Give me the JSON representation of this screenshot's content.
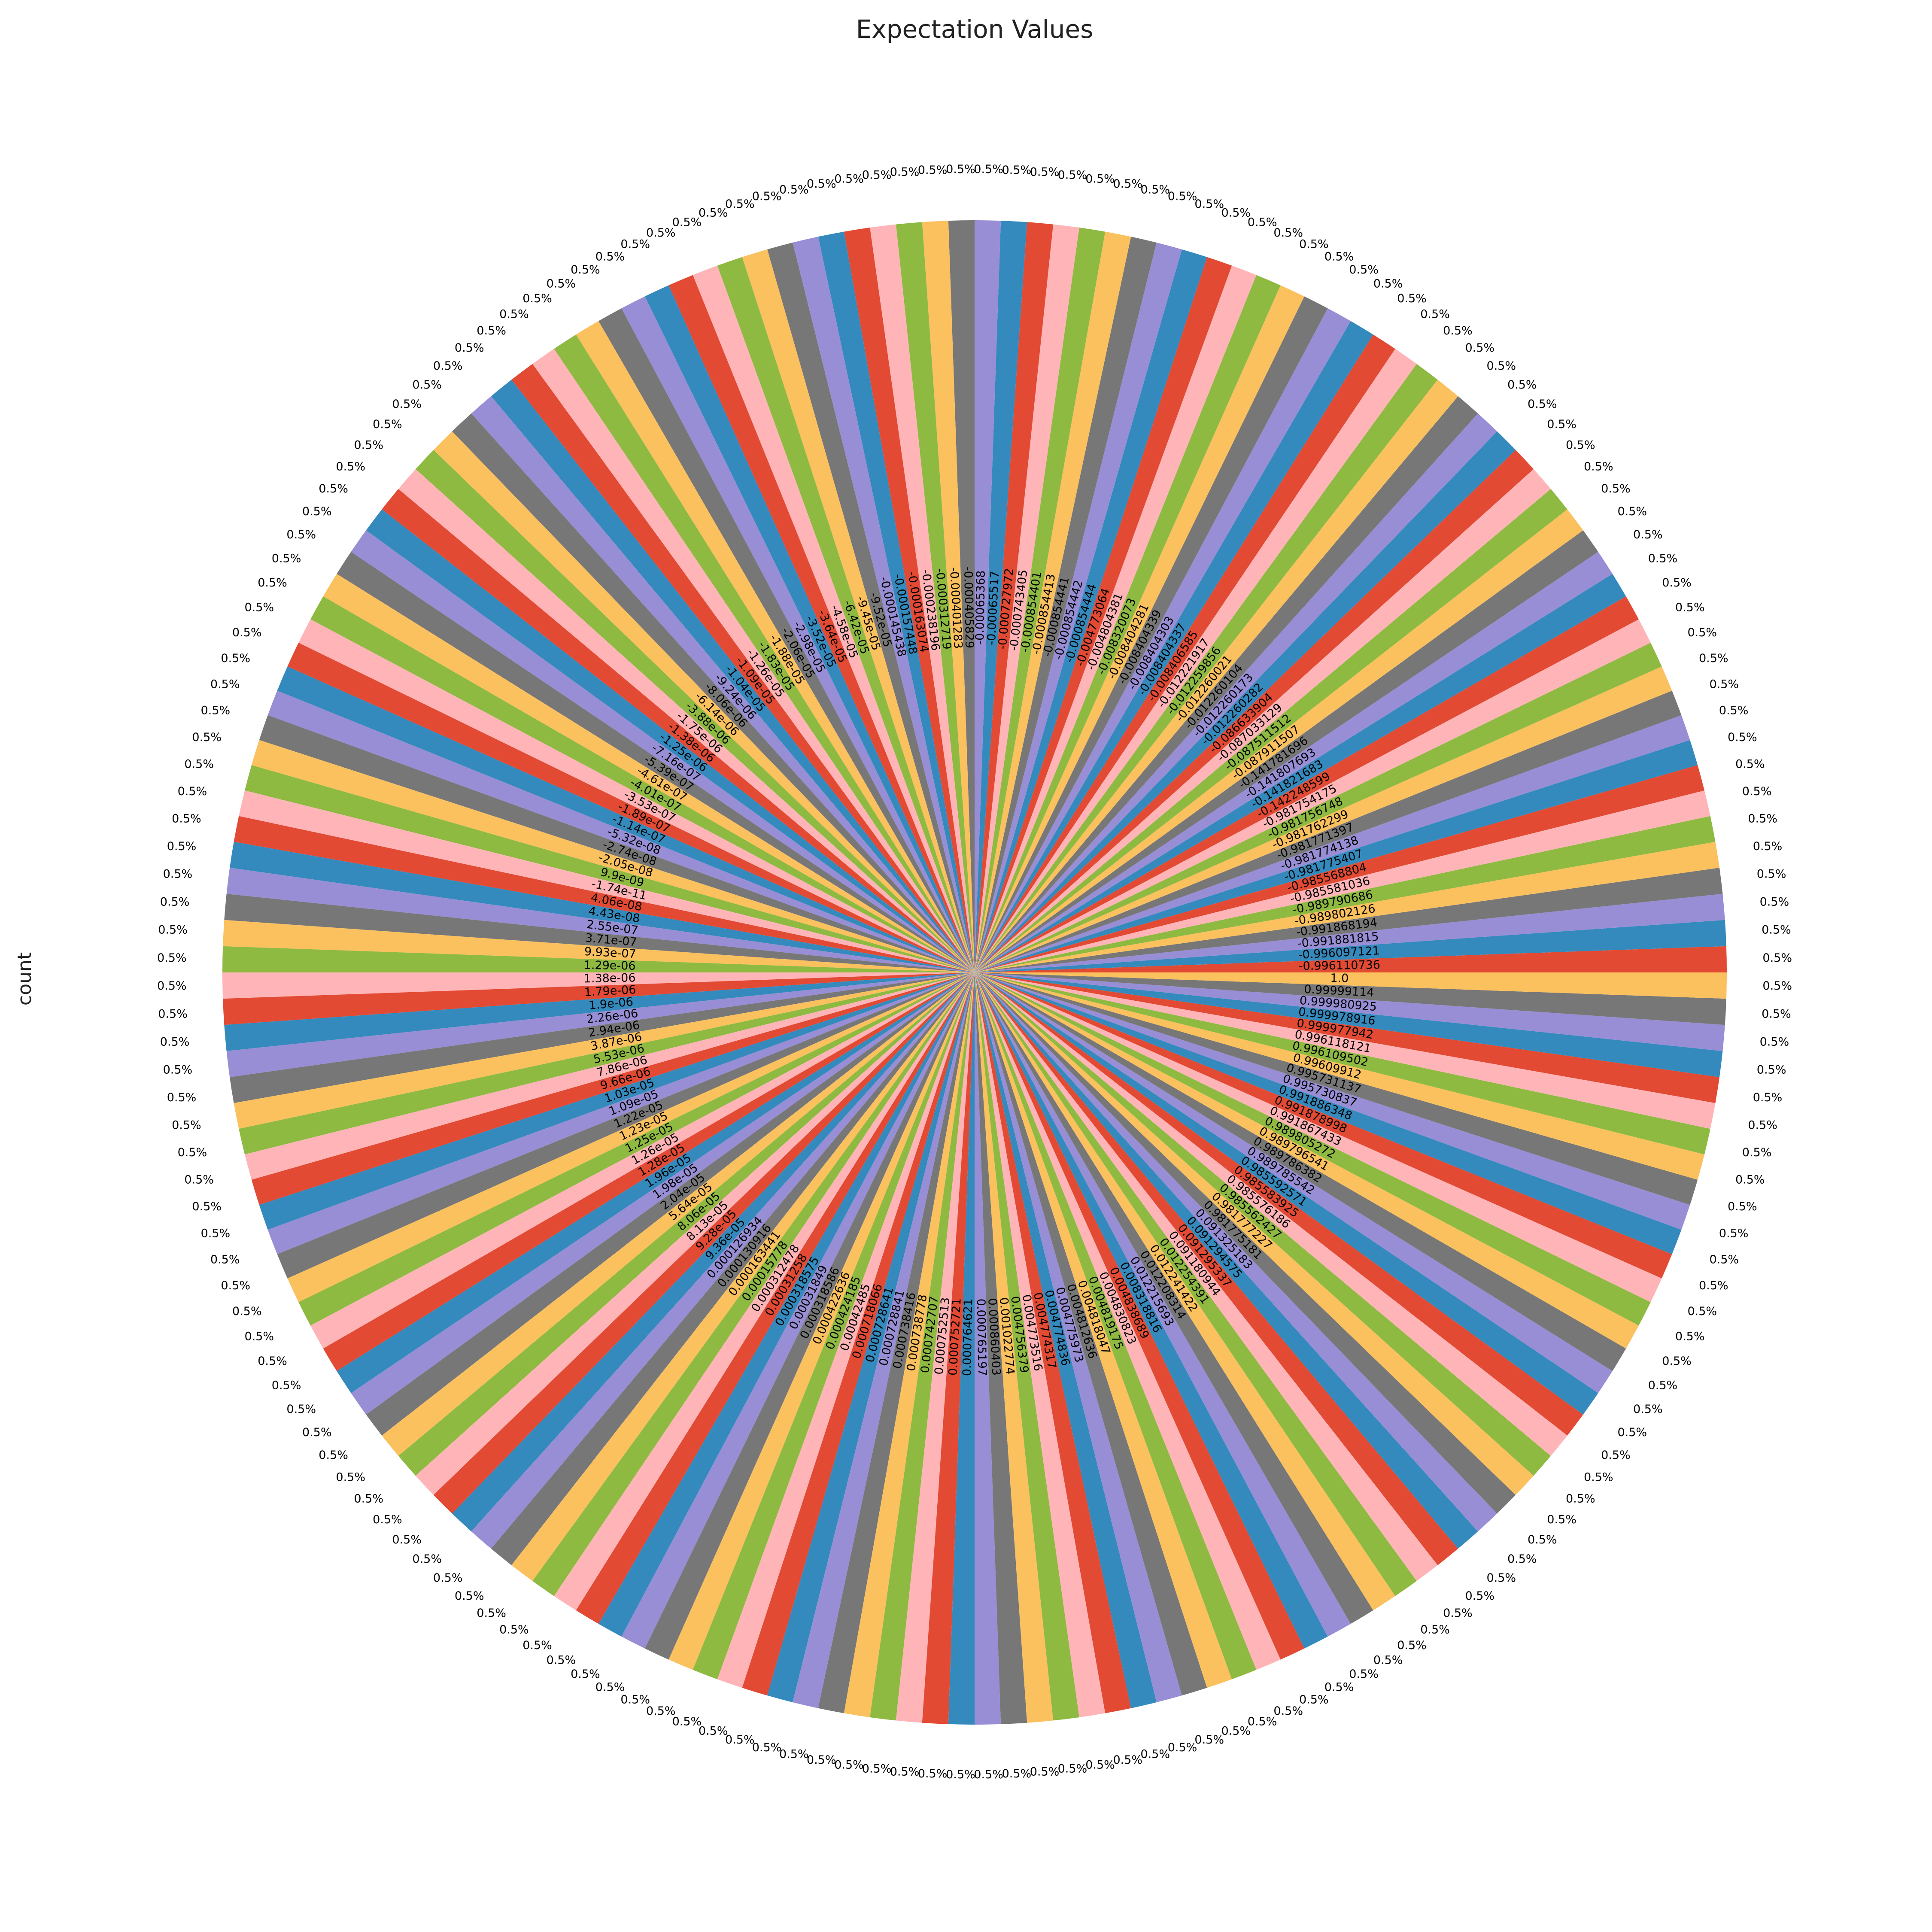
{
  "chart_data": {
    "type": "pie",
    "title": "Expectation Values",
    "ylabel": "count",
    "autopct_label": "0.5%",
    "start_angle_deg": 0,
    "direction": "counterclockwise",
    "colors": [
      "#E24A33",
      "#348ABD",
      "#988ED5",
      "#777777",
      "#FBC15E",
      "#8EBA42",
      "#FFB5B8"
    ],
    "categories": [
      "-0.996110736",
      "-0.996097121",
      "-0.991881815",
      "-0.991868194",
      "-0.989802126",
      "-0.989790686",
      "-0.985581036",
      "-0.985568804",
      "-0.981775407",
      "-0.981774138",
      "-0.981771397",
      "-0.981762299",
      "-0.981756748",
      "-0.981754175",
      "-0.142248599",
      "-0.141821683",
      "-0.141807693",
      "-0.141781696",
      "-0.087911507",
      "-0.087511512",
      "-0.087033129",
      "-0.086633904",
      "-0.012260282",
      "-0.012260173",
      "-0.012260104",
      "-0.012260021",
      "-0.012259856",
      "-0.012221917",
      "-0.008406585",
      "-0.008404337",
      "-0.008404303",
      "-0.008404339",
      "-0.008404281",
      "-0.008320073",
      "-0.004804381",
      "-0.004773064",
      "-0.000854444",
      "-0.000854442",
      "-0.000854441",
      "-0.000854413",
      "-0.000854401",
      "-0.000743405",
      "-0.000727972",
      "-0.00065517",
      "-0.00065368",
      "-0.000405829",
      "-0.000401283",
      "-0.000312719",
      "-0.000238196",
      "-0.000163074",
      "-0.000157448",
      "-0.000145438",
      "-9.52e-05",
      "-9.45e-05",
      "-6.42e-05",
      "-4.58e-05",
      "-3.64e-05",
      "-3.52e-05",
      "-2.98e-05",
      "-2.06e-05",
      "-1.88e-05",
      "-1.83e-05",
      "-1.26e-05",
      "-1.09e-05",
      "-1.04e-05",
      "-9.24e-06",
      "-8.06e-06",
      "-6.14e-06",
      "-3.88e-06",
      "-1.75e-06",
      "-1.38e-06",
      "-1.25e-06",
      "-7.16e-07",
      "-5.39e-07",
      "-4.61e-07",
      "-4.01e-07",
      "-3.53e-07",
      "-1.89e-07",
      "-1.14e-07",
      "-5.32e-08",
      "-2.74e-08",
      "-2.05e-08",
      "9.9e-09",
      "-1.74e-11",
      "4.06e-08",
      "4.43e-08",
      "2.55e-07",
      "3.71e-07",
      "9.93e-07",
      "1.29e-06",
      "1.38e-06",
      "1.79e-06",
      "1.9e-06",
      "2.26e-06",
      "2.94e-06",
      "3.87e-06",
      "5.53e-06",
      "7.86e-06",
      "9.66e-06",
      "1.03e-05",
      "1.09e-05",
      "1.22e-05",
      "1.23e-05",
      "1.25e-05",
      "1.26e-05",
      "1.28e-05",
      "1.96e-05",
      "1.98e-05",
      "2.04e-05",
      "5.64e-05",
      "8.06e-05",
      "8.13e-05",
      "9.28e-05",
      "9.36e-05",
      "0.000126934",
      "0.000130916",
      "0.000163441",
      "0.00015778",
      "0.000312478",
      "0.00031258",
      "0.000318575",
      "0.00031849",
      "0.000318586",
      "0.000422636",
      "0.000424185",
      "0.00042485",
      "0.000718066",
      "0.000728641",
      "0.000728841",
      "0.000738416",
      "0.000738778",
      "0.000742707",
      "0.000752513",
      "0.000752721",
      "0.000764621",
      "0.000765197",
      "0.000860403",
      "0.001022774",
      "0.004756379",
      "0.004773516",
      "0.004774317",
      "0.004774836",
      "0.004775973",
      "0.004812636",
      "0.004818047",
      "0.004819175",
      "0.004830823",
      "0.004838689",
      "0.008318816",
      "0.012215693",
      "0.012208314",
      "0.012241422",
      "0.012254391",
      "0.091180944",
      "0.091295337",
      "0.091294575",
      "0.091325183",
      "0.981775181",
      "0.981777227",
      "0.985562427",
      "0.985576186",
      "0.985583925",
      "0.985592571",
      "0.989785542",
      "0.989786382",
      "0.989796541",
      "0.989805272",
      "0.991867433",
      "0.991878998",
      "0.991886348",
      "0.995730837",
      "0.995731137",
      "0.99609912",
      "0.996109502",
      "0.996118121",
      "0.999977942",
      "0.999978916",
      "0.999980925",
      "0.99999114",
      "1.0"
    ],
    "values": [
      1,
      1,
      1,
      1,
      1,
      1,
      1,
      1,
      1,
      1,
      1,
      1,
      1,
      1,
      1,
      1,
      1,
      1,
      1,
      1,
      1,
      1,
      1,
      1,
      1,
      1,
      1,
      1,
      1,
      1,
      1,
      1,
      1,
      1,
      1,
      1,
      1,
      1,
      1,
      1,
      1,
      1,
      1,
      1,
      1,
      1,
      1,
      1,
      1,
      1,
      1,
      1,
      1,
      1,
      1,
      1,
      1,
      1,
      1,
      1,
      1,
      1,
      1,
      1,
      1,
      1,
      1,
      1,
      1,
      1,
      1,
      1,
      1,
      1,
      1,
      1,
      1,
      1,
      1,
      1,
      1,
      1,
      1,
      1,
      1,
      1,
      1,
      1,
      1,
      1,
      1,
      1,
      1,
      1,
      1,
      1,
      1,
      1,
      1,
      1,
      1,
      1,
      1,
      1,
      1,
      1,
      1,
      1,
      1,
      1,
      1,
      1,
      1,
      1,
      1,
      1,
      1,
      1,
      1,
      1,
      1,
      1,
      1,
      1,
      1,
      1,
      1,
      1,
      1,
      1,
      1,
      1,
      1,
      1,
      1,
      1,
      1,
      1,
      1,
      1,
      1,
      1,
      1,
      1,
      1,
      1,
      1,
      1,
      1,
      1,
      1,
      1,
      1,
      1,
      1,
      1,
      1,
      1,
      1,
      1,
      1,
      1,
      1,
      1,
      1,
      1,
      1,
      1,
      1,
      1,
      1,
      1,
      1,
      1,
      1,
      1,
      1,
      1,
      1,
      1
    ]
  }
}
